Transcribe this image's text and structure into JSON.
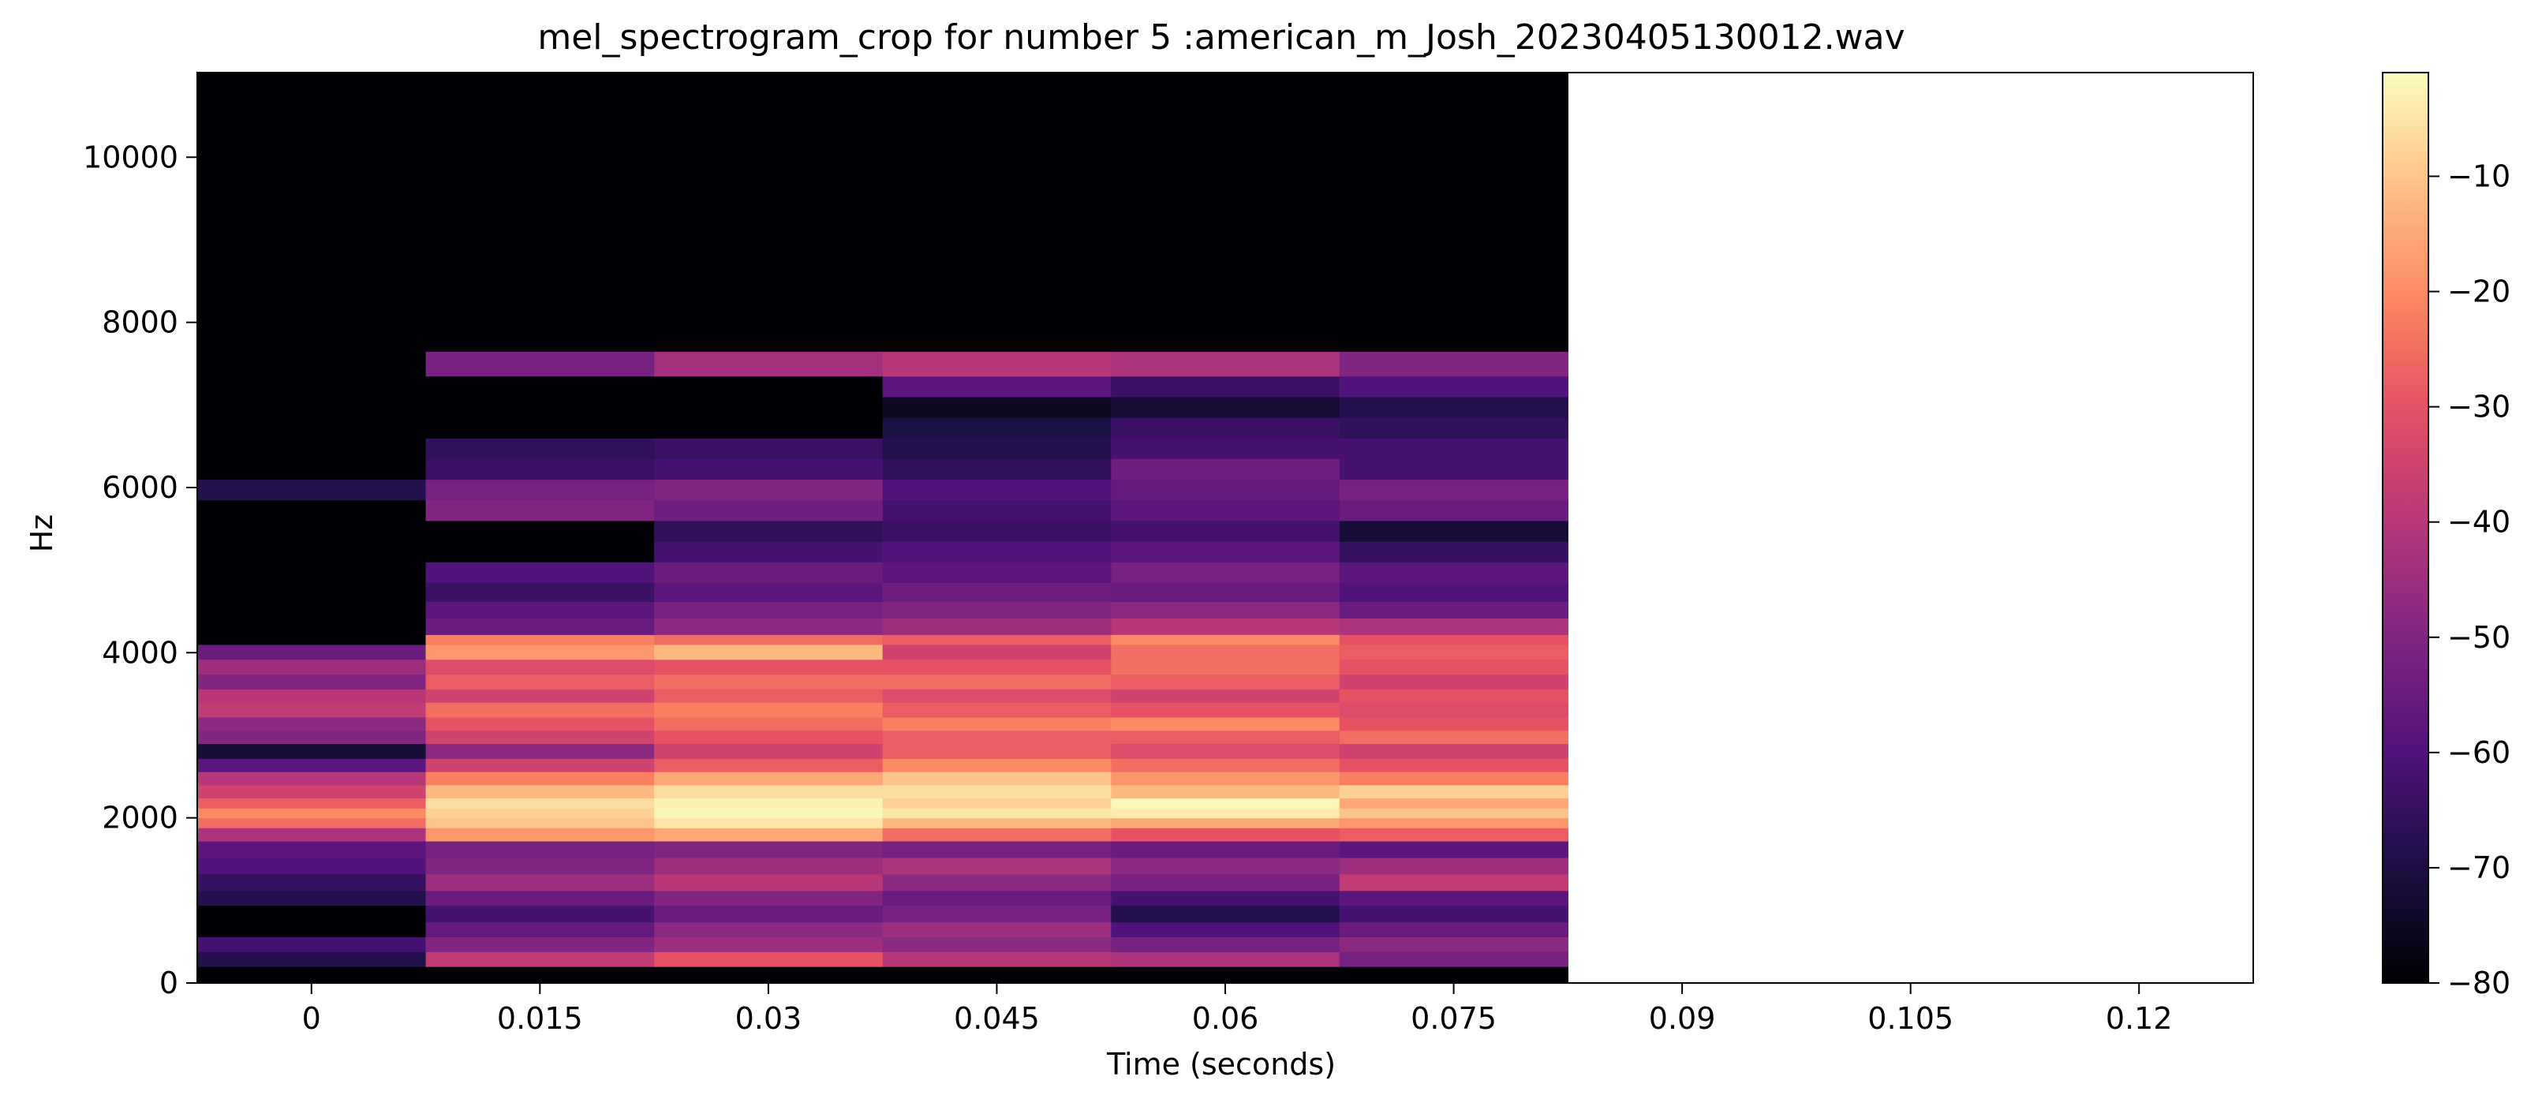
{
  "chart_data": {
    "type": "heatmap",
    "title": "mel_spectrogram_crop for number 5 :american_m_Josh_20230405130012.wav",
    "xlabel": "Time (seconds)",
    "ylabel": "Hz",
    "x_ticks": [
      "0",
      "0.015",
      "0.03",
      "0.045",
      "0.06",
      "0.075",
      "0.09",
      "0.105",
      "0.12"
    ],
    "x_tick_values": [
      0,
      0.015,
      0.03,
      0.045,
      0.06,
      0.075,
      0.09,
      0.105,
      0.12
    ],
    "xlim": [
      -0.0075,
      0.1275
    ],
    "y_ticks": [
      "0",
      "2000",
      "4000",
      "6000",
      "8000",
      "10000"
    ],
    "y_tick_values": [
      0,
      2000,
      4000,
      6000,
      8000,
      10000
    ],
    "ylim": [
      0,
      11025
    ],
    "time_frames": [
      0,
      0.015,
      0.03,
      0.045,
      0.06,
      0.075
    ],
    "colorbar": {
      "ticks": [
        "−10",
        "−20",
        "−30",
        "−40",
        "−50",
        "−60",
        "−70",
        "−80"
      ],
      "tick_values": [
        -10,
        -20,
        -30,
        -40,
        -50,
        -60,
        -70,
        -80
      ],
      "range": [
        -80,
        -1
      ],
      "colormap": "magma"
    },
    "bands_hz": [
      [
        0,
        200
      ],
      [
        200,
        380
      ],
      [
        380,
        560
      ],
      [
        560,
        740
      ],
      [
        740,
        940
      ],
      [
        940,
        1120
      ],
      [
        1120,
        1320
      ],
      [
        1320,
        1520
      ],
      [
        1520,
        1720
      ],
      [
        1720,
        1880
      ],
      [
        1880,
        2000
      ],
      [
        2000,
        2120
      ],
      [
        2120,
        2240
      ],
      [
        2240,
        2400
      ],
      [
        2400,
        2560
      ],
      [
        2560,
        2720
      ],
      [
        2720,
        2900
      ],
      [
        2900,
        3060
      ],
      [
        3060,
        3220
      ],
      [
        3220,
        3400
      ],
      [
        3400,
        3560
      ],
      [
        3560,
        3740
      ],
      [
        3740,
        3920
      ],
      [
        3920,
        4100
      ],
      [
        4100,
        4220
      ],
      [
        4220,
        4420
      ],
      [
        4420,
        4620
      ],
      [
        4620,
        4850
      ],
      [
        4850,
        5100
      ],
      [
        5100,
        5350
      ],
      [
        5350,
        5600
      ],
      [
        5600,
        5850
      ],
      [
        5850,
        6100
      ],
      [
        6100,
        6350
      ],
      [
        6350,
        6600
      ],
      [
        6600,
        6850
      ],
      [
        6850,
        7100
      ],
      [
        7100,
        7350
      ],
      [
        7350,
        7650
      ],
      [
        7650,
        11025
      ]
    ],
    "db_values": [
      [
        -80,
        -80,
        -80,
        -80,
        -80,
        -80
      ],
      [
        -68,
        -38,
        -30,
        -40,
        -42,
        -52
      ],
      [
        -62,
        -50,
        -45,
        -48,
        -52,
        -48
      ],
      [
        -80,
        -56,
        -48,
        -45,
        -60,
        -55
      ],
      [
        -80,
        -62,
        -55,
        -52,
        -68,
        -62
      ],
      [
        -68,
        -55,
        -50,
        -55,
        -62,
        -58
      ],
      [
        -65,
        -45,
        -40,
        -48,
        -52,
        -38
      ],
      [
        -60,
        -50,
        -45,
        -42,
        -48,
        -45
      ],
      [
        -58,
        -52,
        -50,
        -52,
        -55,
        -58
      ],
      [
        -42,
        -18,
        -15,
        -25,
        -30,
        -28
      ],
      [
        -25,
        -10,
        -5,
        -12,
        -15,
        -18
      ],
      [
        -20,
        -8,
        -2,
        -5,
        -4,
        -10
      ],
      [
        -28,
        -6,
        -3,
        -8,
        -2,
        -15
      ],
      [
        -35,
        -12,
        -6,
        -6,
        -12,
        -8
      ],
      [
        -40,
        -22,
        -15,
        -10,
        -18,
        -22
      ],
      [
        -58,
        -35,
        -28,
        -20,
        -25,
        -30
      ],
      [
        -72,
        -48,
        -35,
        -28,
        -32,
        -35
      ],
      [
        -50,
        -35,
        -30,
        -28,
        -28,
        -25
      ],
      [
        -48,
        -30,
        -25,
        -22,
        -20,
        -30
      ],
      [
        -38,
        -25,
        -22,
        -28,
        -30,
        -32
      ],
      [
        -40,
        -35,
        -28,
        -32,
        -35,
        -30
      ],
      [
        -50,
        -28,
        -25,
        -25,
        -28,
        -35
      ],
      [
        -45,
        -32,
        -30,
        -30,
        -25,
        -30
      ],
      [
        -55,
        -18,
        -12,
        -35,
        -25,
        -28
      ],
      [
        -80,
        -22,
        -25,
        -28,
        -20,
        -30
      ],
      [
        -80,
        -55,
        -48,
        -45,
        -40,
        -42
      ],
      [
        -80,
        -58,
        -52,
        -50,
        -48,
        -55
      ],
      [
        -80,
        -64,
        -58,
        -54,
        -55,
        -60
      ],
      [
        -80,
        -60,
        -55,
        -58,
        -52,
        -58
      ],
      [
        -80,
        -80,
        -62,
        -60,
        -58,
        -65
      ],
      [
        -80,
        -80,
        -66,
        -64,
        -62,
        -72
      ],
      [
        -80,
        -50,
        -54,
        -62,
        -58,
        -55
      ],
      [
        -68,
        -52,
        -50,
        -60,
        -56,
        -52
      ],
      [
        -80,
        -64,
        -62,
        -66,
        -54,
        -62
      ],
      [
        -80,
        -66,
        -64,
        -68,
        -62,
        -62
      ],
      [
        -80,
        -80,
        -80,
        -70,
        -64,
        -66
      ],
      [
        -80,
        -80,
        -80,
        -75,
        -72,
        -68
      ],
      [
        -80,
        -80,
        -80,
        -58,
        -64,
        -60
      ],
      [
        -80,
        -52,
        -44,
        -40,
        -42,
        -50
      ],
      [
        -80,
        -80,
        -80,
        -80,
        -80,
        -80
      ]
    ]
  }
}
